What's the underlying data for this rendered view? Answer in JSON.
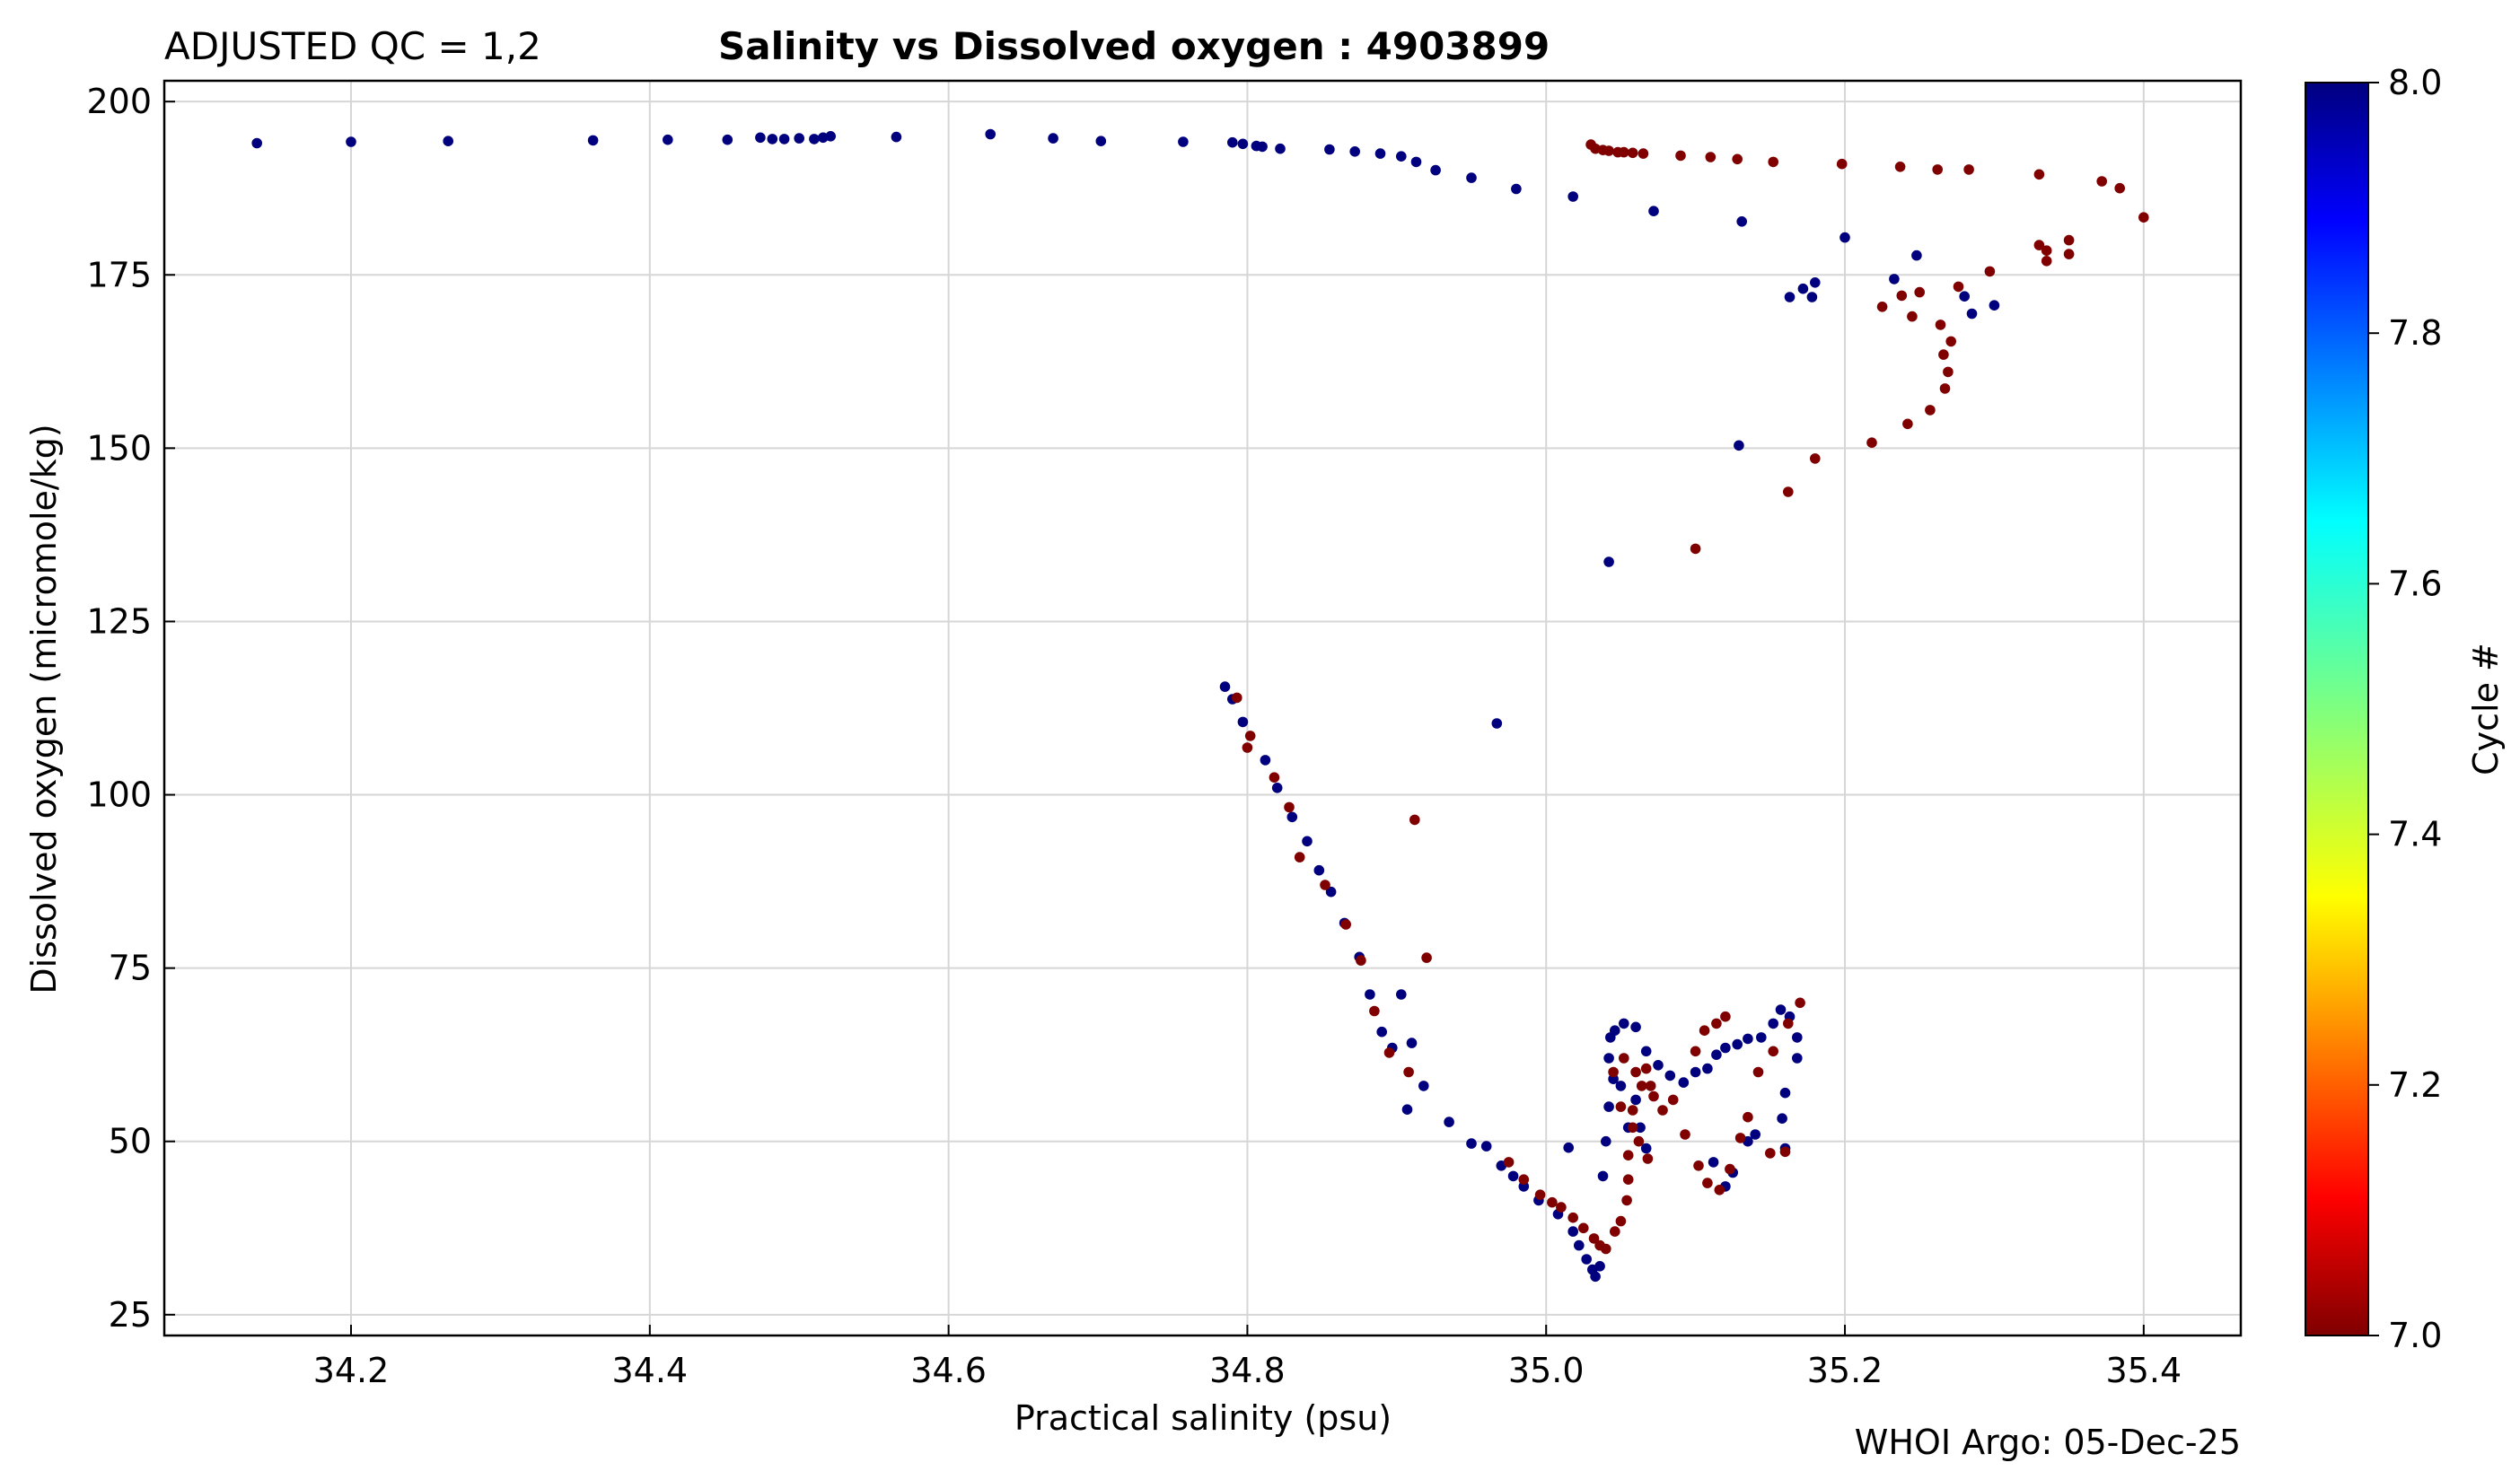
{
  "header": {
    "qc_label": "ADJUSTED QC = 1,2",
    "title": "Salinity vs Dissolved oxygen : 4903899"
  },
  "footer": {
    "credit": "WHOI Argo: 05-Dec-25"
  },
  "colors": {
    "cycle7": "#800000",
    "cycle8": "#00007f",
    "grid": "#d6d6d6"
  },
  "chart_data": {
    "type": "scatter",
    "title": "Salinity vs Dissolved oxygen : 4903899",
    "xlabel": "Practical salinity  (psu)",
    "ylabel": "Dissolved oxygen  (micromole/kg)",
    "xlim": [
      34.075,
      35.465
    ],
    "ylim": [
      22,
      203
    ],
    "xticks": [
      34.2,
      34.4,
      34.6,
      34.8,
      35.0,
      35.2,
      35.4
    ],
    "xtick_labels": [
      "34.2",
      "34.4",
      "34.6",
      "34.8",
      "35.0",
      "35.2",
      "35.4"
    ],
    "yticks": [
      25,
      50,
      75,
      100,
      125,
      150,
      175,
      200
    ],
    "ytick_labels": [
      "25",
      "50",
      "75",
      "100",
      "125",
      "150",
      "175",
      "200"
    ],
    "grid": true,
    "colorbar": {
      "label": "Cycle #",
      "min": 7.0,
      "max": 8.0,
      "ticks": [
        7.0,
        7.2,
        7.4,
        7.6,
        7.8,
        8.0
      ],
      "tick_labels": [
        "7.0",
        "7.2",
        "7.4",
        "7.6",
        "7.8",
        "8.0"
      ],
      "colormap": "jet"
    },
    "series": [
      {
        "name": "Cycle 8",
        "cycle": 8,
        "points": [
          [
            34.137,
            194
          ],
          [
            34.2,
            194.2
          ],
          [
            34.265,
            194.3
          ],
          [
            34.362,
            194.4
          ],
          [
            34.412,
            194.5
          ],
          [
            34.452,
            194.5
          ],
          [
            34.474,
            194.8
          ],
          [
            34.482,
            194.6
          ],
          [
            34.49,
            194.6
          ],
          [
            34.5,
            194.7
          ],
          [
            34.51,
            194.6
          ],
          [
            34.516,
            194.8
          ],
          [
            34.521,
            195
          ],
          [
            34.565,
            194.9
          ],
          [
            34.628,
            195.3
          ],
          [
            34.67,
            194.7
          ],
          [
            34.702,
            194.3
          ],
          [
            34.757,
            194.2
          ],
          [
            34.79,
            194.1
          ],
          [
            34.797,
            193.9
          ],
          [
            34.806,
            193.6
          ],
          [
            34.81,
            193.5
          ],
          [
            34.822,
            193.2
          ],
          [
            34.855,
            193.1
          ],
          [
            34.872,
            192.8
          ],
          [
            34.889,
            192.5
          ],
          [
            34.903,
            192.1
          ],
          [
            34.913,
            191.3
          ],
          [
            34.926,
            190.1
          ],
          [
            34.95,
            189
          ],
          [
            34.98,
            187.4
          ],
          [
            35.018,
            186.3
          ],
          [
            35.072,
            184.2
          ],
          [
            35.131,
            182.7
          ],
          [
            35.2,
            180.4
          ],
          [
            35.18,
            173.9
          ],
          [
            35.172,
            173
          ],
          [
            35.163,
            171.8
          ],
          [
            35.178,
            171.8
          ],
          [
            35.233,
            174.4
          ],
          [
            35.248,
            177.8
          ],
          [
            35.28,
            171.9
          ],
          [
            35.285,
            169.4
          ],
          [
            35.3,
            170.6
          ],
          [
            35.129,
            150.4
          ],
          [
            35.042,
            133.6
          ],
          [
            34.785,
            115.6
          ],
          [
            34.79,
            113.8
          ],
          [
            34.797,
            110.5
          ],
          [
            34.812,
            105
          ],
          [
            34.82,
            101
          ],
          [
            34.83,
            96.8
          ],
          [
            34.84,
            93.3
          ],
          [
            34.848,
            89.1
          ],
          [
            34.856,
            86
          ],
          [
            34.865,
            81.5
          ],
          [
            34.875,
            76.6
          ],
          [
            34.882,
            71.2
          ],
          [
            34.903,
            71.2
          ],
          [
            34.967,
            110.3
          ],
          [
            34.89,
            65.8
          ],
          [
            34.897,
            63.5
          ],
          [
            34.91,
            64.2
          ],
          [
            34.918,
            58
          ],
          [
            34.907,
            54.6
          ],
          [
            34.935,
            52.8
          ],
          [
            34.95,
            49.7
          ],
          [
            34.96,
            49.3
          ],
          [
            34.97,
            46.5
          ],
          [
            34.978,
            45
          ],
          [
            34.985,
            43.5
          ],
          [
            34.995,
            41.5
          ],
          [
            35.008,
            39.5
          ],
          [
            35.018,
            37
          ],
          [
            35.022,
            35
          ],
          [
            35.027,
            33
          ],
          [
            35.031,
            31.5
          ],
          [
            35.033,
            30.5
          ],
          [
            35.036,
            32
          ],
          [
            35.015,
            49.1
          ],
          [
            35.038,
            45
          ],
          [
            35.04,
            50
          ],
          [
            35.042,
            55
          ],
          [
            35.042,
            62
          ],
          [
            35.043,
            65
          ],
          [
            35.046,
            66
          ],
          [
            35.052,
            67
          ],
          [
            35.06,
            66.5
          ],
          [
            35.067,
            63
          ],
          [
            35.075,
            61
          ],
          [
            35.083,
            59.5
          ],
          [
            35.092,
            58.5
          ],
          [
            35.1,
            60
          ],
          [
            35.108,
            60.5
          ],
          [
            35.114,
            62.5
          ],
          [
            35.12,
            63.5
          ],
          [
            35.128,
            64
          ],
          [
            35.135,
            64.8
          ],
          [
            35.144,
            65
          ],
          [
            35.152,
            67
          ],
          [
            35.157,
            69
          ],
          [
            35.163,
            68
          ],
          [
            35.168,
            65
          ],
          [
            35.168,
            62
          ],
          [
            35.16,
            57
          ],
          [
            35.158,
            53.3
          ],
          [
            35.14,
            51
          ],
          [
            35.135,
            50
          ],
          [
            35.125,
            45.5
          ],
          [
            35.12,
            43.5
          ],
          [
            35.112,
            47
          ],
          [
            35.16,
            49
          ],
          [
            35.05,
            58
          ],
          [
            35.06,
            56
          ],
          [
            35.063,
            52
          ],
          [
            35.067,
            49
          ],
          [
            35.055,
            52
          ],
          [
            35.045,
            59
          ]
        ]
      },
      {
        "name": "Cycle 7",
        "cycle": 7,
        "points": [
          [
            35.03,
            193.8
          ],
          [
            35.033,
            193.2
          ],
          [
            35.038,
            193
          ],
          [
            35.042,
            192.9
          ],
          [
            35.048,
            192.7
          ],
          [
            35.052,
            192.7
          ],
          [
            35.058,
            192.6
          ],
          [
            35.065,
            192.5
          ],
          [
            35.09,
            192.2
          ],
          [
            35.11,
            192
          ],
          [
            35.128,
            191.7
          ],
          [
            35.152,
            191.3
          ],
          [
            35.198,
            191
          ],
          [
            35.237,
            190.6
          ],
          [
            35.262,
            190.2
          ],
          [
            35.283,
            190.2
          ],
          [
            35.33,
            189.5
          ],
          [
            35.372,
            188.5
          ],
          [
            35.384,
            187.5
          ],
          [
            35.4,
            183.3
          ],
          [
            35.35,
            180
          ],
          [
            35.35,
            178
          ],
          [
            35.335,
            178.5
          ],
          [
            35.33,
            179.3
          ],
          [
            35.335,
            177
          ],
          [
            35.297,
            175.5
          ],
          [
            35.276,
            173.3
          ],
          [
            35.25,
            172.5
          ],
          [
            35.225,
            170.4
          ],
          [
            35.238,
            172
          ],
          [
            35.245,
            169
          ],
          [
            35.264,
            167.8
          ],
          [
            35.271,
            165.4
          ],
          [
            35.266,
            163.5
          ],
          [
            35.269,
            161
          ],
          [
            35.267,
            158.6
          ],
          [
            35.257,
            155.5
          ],
          [
            35.242,
            153.5
          ],
          [
            35.218,
            150.8
          ],
          [
            35.18,
            148.5
          ],
          [
            35.162,
            143.7
          ],
          [
            35.1,
            135.5
          ],
          [
            34.912,
            96.4
          ],
          [
            34.92,
            76.5
          ],
          [
            34.793,
            114
          ],
          [
            34.802,
            108.5
          ],
          [
            34.8,
            106.8
          ],
          [
            34.818,
            102.5
          ],
          [
            34.828,
            98.2
          ],
          [
            34.835,
            91
          ],
          [
            34.852,
            87
          ],
          [
            34.866,
            81.3
          ],
          [
            34.876,
            76.1
          ],
          [
            34.885,
            68.8
          ],
          [
            34.895,
            62.8
          ],
          [
            34.908,
            60
          ],
          [
            34.975,
            47
          ],
          [
            34.985,
            44.5
          ],
          [
            34.996,
            42.3
          ],
          [
            35.004,
            41.2
          ],
          [
            35.01,
            40.5
          ],
          [
            35.018,
            39
          ],
          [
            35.025,
            37.5
          ],
          [
            35.032,
            36
          ],
          [
            35.036,
            35
          ],
          [
            35.04,
            34.5
          ],
          [
            35.046,
            37
          ],
          [
            35.05,
            38.5
          ],
          [
            35.054,
            41.5
          ],
          [
            35.055,
            48
          ],
          [
            35.058,
            52
          ],
          [
            35.058,
            54.5
          ],
          [
            35.064,
            58
          ],
          [
            35.067,
            60.5
          ],
          [
            35.072,
            56.5
          ],
          [
            35.078,
            54.5
          ],
          [
            35.085,
            56
          ],
          [
            35.093,
            51
          ],
          [
            35.102,
            46.5
          ],
          [
            35.108,
            44
          ],
          [
            35.116,
            43
          ],
          [
            35.123,
            46
          ],
          [
            35.13,
            50.5
          ],
          [
            35.135,
            53.5
          ],
          [
            35.142,
            60
          ],
          [
            35.152,
            63
          ],
          [
            35.162,
            67
          ],
          [
            35.17,
            70
          ],
          [
            35.16,
            48.5
          ],
          [
            35.15,
            48.3
          ],
          [
            35.045,
            60
          ],
          [
            35.052,
            62
          ],
          [
            35.06,
            60
          ],
          [
            35.07,
            58
          ],
          [
            35.055,
            44.5
          ],
          [
            35.062,
            50
          ],
          [
            35.05,
            55
          ],
          [
            35.068,
            47.5
          ],
          [
            35.1,
            63
          ],
          [
            35.106,
            66
          ],
          [
            35.114,
            67
          ],
          [
            35.12,
            68
          ]
        ]
      }
    ]
  }
}
